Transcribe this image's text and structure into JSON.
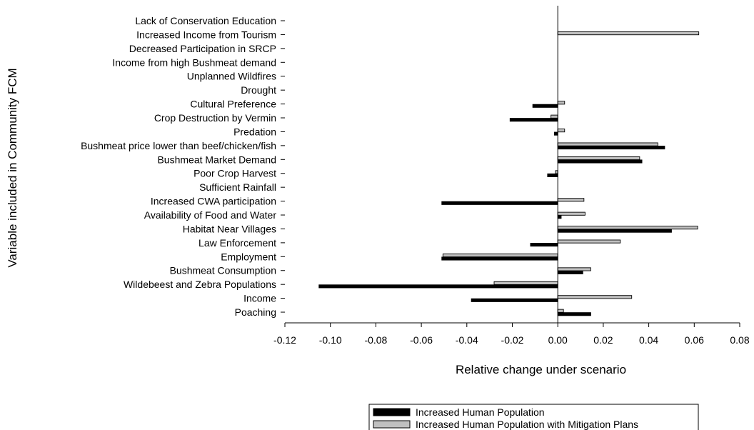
{
  "chart_data": {
    "type": "bar",
    "orientation": "horizontal",
    "xlabel": "Relative change under scenario",
    "ylabel": "Variable included in Community FCM",
    "xlim": [
      -0.12,
      0.08
    ],
    "xticks": [
      -0.12,
      -0.1,
      -0.08,
      -0.06,
      -0.04,
      -0.02,
      0.0,
      0.02,
      0.04,
      0.06,
      0.08
    ],
    "xtick_labels": [
      "-0.12",
      "-0.10",
      "-0.08",
      "-0.06",
      "-0.04",
      "-0.02",
      "0.00",
      "0.02",
      "0.04",
      "0.06",
      "0.08"
    ],
    "grid": false,
    "legend_position": "bottom-center",
    "categories": [
      "Lack of Conservation Education",
      "Increased Income from Tourism",
      "Decreased Participation in SRCP",
      "Income from high Bushmeat demand",
      "Unplanned Wildfires",
      "Drought",
      "Cultural Preference",
      "Crop Destruction by Vermin",
      "Predation",
      "Bushmeat price lower than beef/chicken/fish",
      "Bushmeat Market Demand",
      "Poor Crop Harvest",
      "Sufficient Rainfall",
      "Increased CWA participation",
      "Availability of Food and Water",
      "Habitat Near Villages",
      "Law Enforcement",
      "Employment",
      "Bushmeat Consumption",
      "Wildebeest and Zebra Populations",
      "Income",
      "Poaching"
    ],
    "series": [
      {
        "name": "Increased Human Population",
        "color": "#000000",
        "values": [
          0,
          0,
          0,
          0,
          0,
          0,
          -0.011,
          -0.021,
          -0.0015,
          0.047,
          0.037,
          -0.0045,
          0,
          -0.051,
          0.0015,
          0.05,
          -0.012,
          -0.051,
          0.011,
          -0.105,
          -0.038,
          0.0145
        ]
      },
      {
        "name": "Increased Human Population with Mitigation Plans",
        "color": "#c0c0c0",
        "values": [
          0,
          0.062,
          0,
          0,
          0,
          0,
          0.003,
          -0.003,
          0.003,
          0.044,
          0.036,
          -0.001,
          0,
          0.0115,
          0.012,
          0.0615,
          0.0275,
          -0.0505,
          0.0145,
          -0.028,
          0.0325,
          0.0025
        ]
      }
    ]
  }
}
